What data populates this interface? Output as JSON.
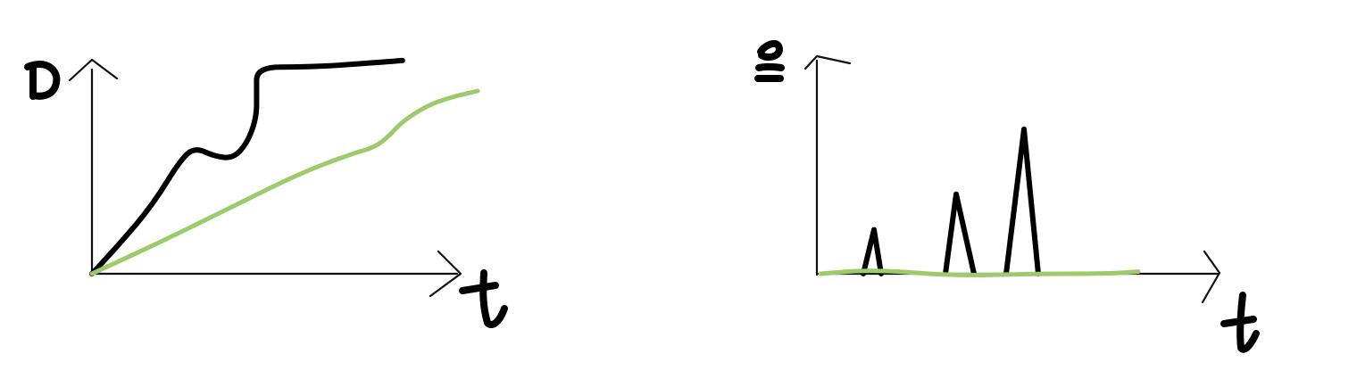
{
  "chart_data": [
    {
      "type": "line",
      "title": "",
      "xlabel": "t",
      "ylabel": "D",
      "x_tick_labels": [],
      "y_tick_labels": [],
      "grid": false,
      "legend": "none",
      "series": [
        {
          "color": "#000000",
          "points": [
            [
              0.0,
              0.0
            ],
            [
              0.06,
              0.14
            ],
            [
              0.13,
              0.32
            ],
            [
              0.19,
              0.53
            ],
            [
              0.22,
              0.58
            ],
            [
              0.26,
              0.54
            ],
            [
              0.3,
              0.53
            ],
            [
              0.33,
              0.6
            ],
            [
              0.35,
              0.72
            ],
            [
              0.35,
              0.83
            ],
            [
              0.35,
              0.95
            ],
            [
              0.45,
              0.95
            ],
            [
              0.54,
              0.96
            ],
            [
              0.66,
              0.98
            ]
          ]
        },
        {
          "color": "#9dcb6b",
          "points": [
            [
              0.0,
              0.0
            ],
            [
              0.15,
              0.15
            ],
            [
              0.3,
              0.31
            ],
            [
              0.44,
              0.46
            ],
            [
              0.55,
              0.55
            ],
            [
              0.6,
              0.58
            ],
            [
              0.63,
              0.63
            ],
            [
              0.66,
              0.7
            ],
            [
              0.71,
              0.77
            ],
            [
              0.76,
              0.81
            ],
            [
              0.82,
              0.84
            ]
          ]
        }
      ]
    },
    {
      "type": "line",
      "title": "",
      "xlabel": "t",
      "ylabel": "E",
      "x_tick_labels": [],
      "y_tick_labels": [],
      "grid": false,
      "legend": "none",
      "series": [
        {
          "color": "#000000",
          "segments": [
            [
              [
                0.13,
                0.0
              ],
              [
                0.16,
                0.21
              ],
              [
                0.18,
                0.0
              ]
            ],
            [
              [
                0.36,
                0.0
              ],
              [
                0.39,
                0.38
              ],
              [
                0.44,
                0.0
              ]
            ],
            [
              [
                0.53,
                0.0
              ],
              [
                0.58,
                0.69
              ],
              [
                0.62,
                0.0
              ]
            ]
          ]
        },
        {
          "color": "#9dcb6b",
          "points": [
            [
              0.01,
              0.0
            ],
            [
              0.16,
              0.02
            ],
            [
              0.38,
              -0.01
            ],
            [
              0.6,
              0.0
            ],
            [
              0.82,
              0.0
            ],
            [
              0.9,
              0.01
            ]
          ]
        }
      ]
    }
  ]
}
